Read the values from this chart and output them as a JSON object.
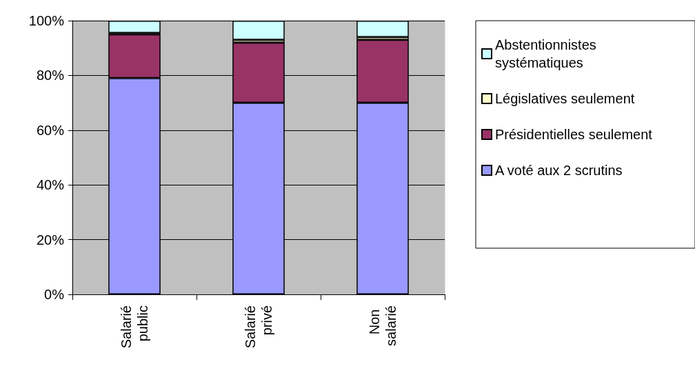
{
  "chart_data": {
    "type": "bar",
    "stacked": true,
    "categories": [
      "Salarié public",
      "Salarié privé",
      "Non salarié"
    ],
    "series": [
      {
        "name": "A voté aux 2 scrutins",
        "color": "#9999ff",
        "values": [
          79,
          70,
          70
        ]
      },
      {
        "name": "Présidentielles seulement",
        "color": "#993366",
        "values": [
          16,
          22,
          23
        ]
      },
      {
        "name": "Législatives seulement",
        "color": "#ffffcc",
        "values": [
          0.5,
          1,
          1
        ]
      },
      {
        "name": "Abstentionnistes systématiques",
        "color": "#ccffff",
        "values": [
          4.5,
          7,
          6
        ]
      }
    ],
    "ylim": [
      0,
      100
    ],
    "yticks": [
      {
        "value": 0,
        "label": "0%"
      },
      {
        "value": 20,
        "label": "20%"
      },
      {
        "value": 40,
        "label": "40%"
      },
      {
        "value": 60,
        "label": "60%"
      },
      {
        "value": 80,
        "label": "80%"
      },
      {
        "value": 100,
        "label": "100%"
      }
    ],
    "grid": "y",
    "legend": "right"
  }
}
